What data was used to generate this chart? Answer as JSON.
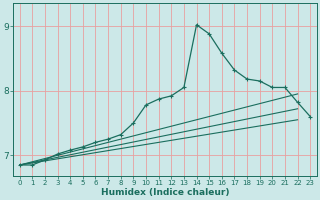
{
  "xlabel": "Humidex (Indice chaleur)",
  "xlim": [
    -0.5,
    23.5
  ],
  "ylim": [
    6.68,
    9.35
  ],
  "yticks": [
    7,
    8,
    9
  ],
  "xticks": [
    0,
    1,
    2,
    3,
    4,
    5,
    6,
    7,
    8,
    9,
    10,
    11,
    12,
    13,
    14,
    15,
    16,
    17,
    18,
    19,
    20,
    21,
    22,
    23
  ],
  "bg_color": "#cce8e8",
  "grid_color": "#e8a0a0",
  "line_color": "#1a6e5e",
  "main_series_x": [
    0,
    1,
    2,
    3,
    4,
    5,
    6,
    7,
    8,
    9,
    10,
    11,
    12,
    13,
    14,
    15,
    16,
    17,
    18,
    19,
    20,
    21,
    22,
    23
  ],
  "main_series_y": [
    6.85,
    6.85,
    6.93,
    7.02,
    7.08,
    7.13,
    7.2,
    7.25,
    7.32,
    7.5,
    7.78,
    7.87,
    7.92,
    8.05,
    9.02,
    8.88,
    8.58,
    8.32,
    8.18,
    8.15,
    8.05,
    8.05,
    7.82,
    7.6
  ],
  "linear_lines": [
    {
      "x0": 0,
      "y0": 6.85,
      "x1": 22,
      "y1": 7.95
    },
    {
      "x0": 0,
      "y0": 6.85,
      "x1": 22,
      "y1": 7.72
    },
    {
      "x0": 0,
      "y0": 6.85,
      "x1": 22,
      "y1": 7.55
    }
  ],
  "figsize": [
    3.2,
    2.0
  ],
  "dpi": 100
}
